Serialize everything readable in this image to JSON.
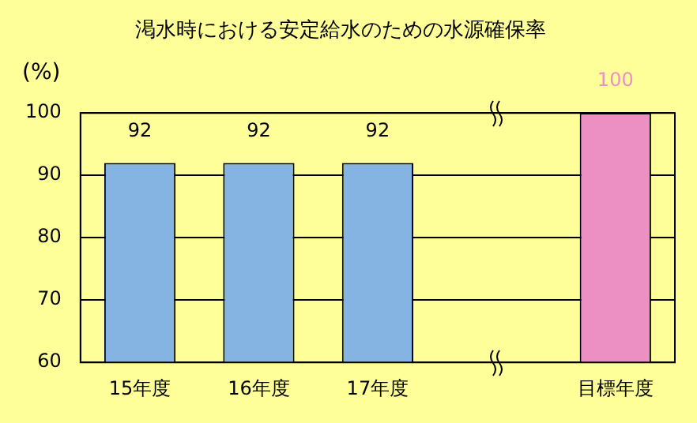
{
  "chart_data": {
    "type": "bar",
    "title": "渇水時における安定給水のための水源確保率",
    "ylabel": "(%)",
    "categories": [
      "15年度",
      "16年度",
      "17年度",
      null,
      "目標年度"
    ],
    "values": [
      92,
      92,
      92,
      null,
      100
    ],
    "colors": [
      "#86b4e2",
      "#86b4e2",
      "#86b4e2",
      "#86b4e2",
      "#ec90c4"
    ],
    "ylim": [
      60,
      100
    ],
    "yticks": [
      60,
      70,
      80,
      90,
      100
    ],
    "grid": "y",
    "data_labels": true,
    "legend": false
  }
}
